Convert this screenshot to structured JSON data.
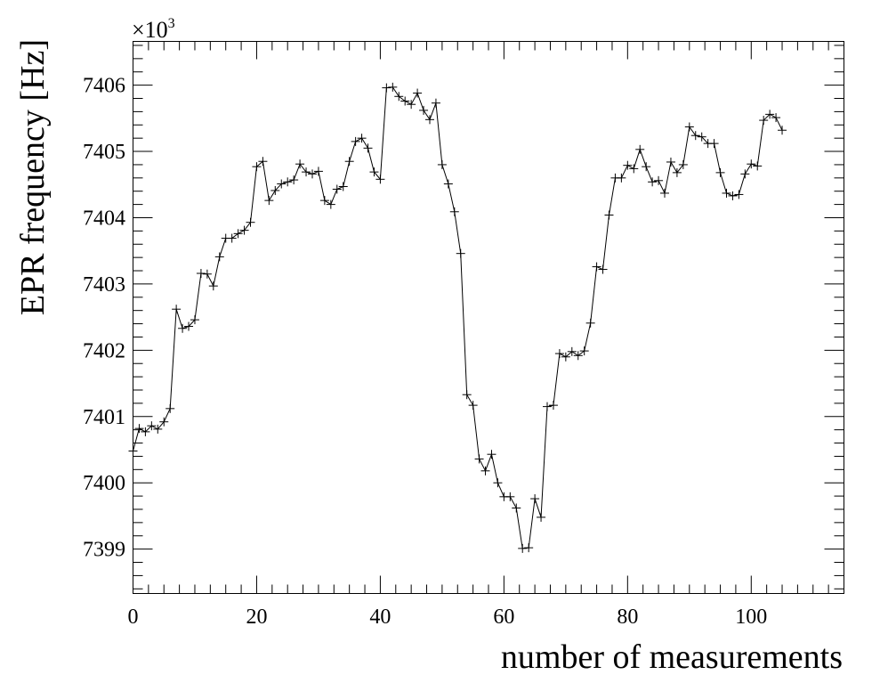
{
  "chart_data": {
    "type": "line",
    "title": "",
    "xlabel": "number of measurements",
    "ylabel": "EPR frequency [Hz]",
    "y_multiplier": "×10",
    "y_multiplier_exp": "3",
    "xlim": [
      0,
      115
    ],
    "ylim": [
      7398.33,
      7406.66
    ],
    "x_ticks": [
      0,
      20,
      40,
      60,
      80,
      100
    ],
    "x_tick_labels": [
      "0",
      "20",
      "40",
      "60",
      "80",
      "100"
    ],
    "y_ticks": [
      7399,
      7400,
      7401,
      7402,
      7403,
      7404,
      7405,
      7406
    ],
    "y_tick_labels": [
      "7399",
      "7400",
      "7401",
      "7402",
      "7403",
      "7404",
      "7405",
      "7406"
    ],
    "grid": false,
    "marker": "cross",
    "x": [
      0,
      1,
      2,
      3,
      4,
      5,
      6,
      7,
      8,
      9,
      10,
      11,
      12,
      13,
      14,
      15,
      16,
      17,
      18,
      19,
      20,
      21,
      22,
      23,
      24,
      25,
      26,
      27,
      28,
      29,
      30,
      31,
      32,
      33,
      34,
      35,
      36,
      37,
      38,
      39,
      40,
      41,
      42,
      43,
      44,
      45,
      46,
      47,
      48,
      49,
      50,
      51,
      52,
      53,
      54,
      55,
      56,
      57,
      58,
      59,
      60,
      61,
      62,
      63,
      64,
      65,
      66,
      67,
      68,
      69,
      70,
      71,
      72,
      73,
      74,
      75,
      76,
      77,
      78,
      79,
      80,
      81,
      82,
      83,
      84,
      85,
      86,
      87,
      88,
      89,
      90,
      91,
      92,
      93,
      94,
      95,
      96,
      97,
      98,
      99,
      100,
      101,
      102,
      103,
      104,
      105
    ],
    "values": [
      7400.48,
      7400.82,
      7400.77,
      7400.86,
      7400.81,
      7400.92,
      7401.12,
      7402.62,
      7402.33,
      7402.36,
      7402.46,
      7403.16,
      7403.15,
      7402.97,
      7403.41,
      7403.69,
      7403.69,
      7403.76,
      7403.81,
      7403.93,
      7404.77,
      7404.85,
      7404.26,
      7404.41,
      7404.51,
      7404.54,
      7404.57,
      7404.81,
      7404.69,
      7404.66,
      7404.7,
      7404.26,
      7404.2,
      7404.43,
      7404.47,
      7404.85,
      7405.15,
      7405.2,
      7405.05,
      7404.69,
      7404.58,
      7405.96,
      7405.97,
      7405.83,
      7405.76,
      7405.71,
      7405.88,
      7405.62,
      7405.48,
      7405.73,
      7404.8,
      7404.51,
      7404.09,
      7403.46,
      7401.33,
      7401.17,
      7400.36,
      7400.18,
      7400.43,
      7400.0,
      7399.79,
      7399.79,
      7399.62,
      7399.01,
      7399.02,
      7399.76,
      7399.48,
      7401.15,
      7401.17,
      7401.95,
      7401.9,
      7401.98,
      7401.92,
      7401.99,
      7402.41,
      7403.26,
      7403.22,
      7404.04,
      7404.6,
      7404.6,
      7404.79,
      7404.74,
      7405.03,
      7404.77,
      7404.54,
      7404.56,
      7404.37,
      7404.84,
      7404.68,
      7404.8,
      7405.37,
      7405.24,
      7405.22,
      7405.12,
      7405.12,
      7404.68,
      7404.37,
      7404.33,
      7404.35,
      7404.66,
      7404.81,
      7404.78,
      7405.47,
      7405.56,
      7405.51,
      7405.32
    ]
  }
}
